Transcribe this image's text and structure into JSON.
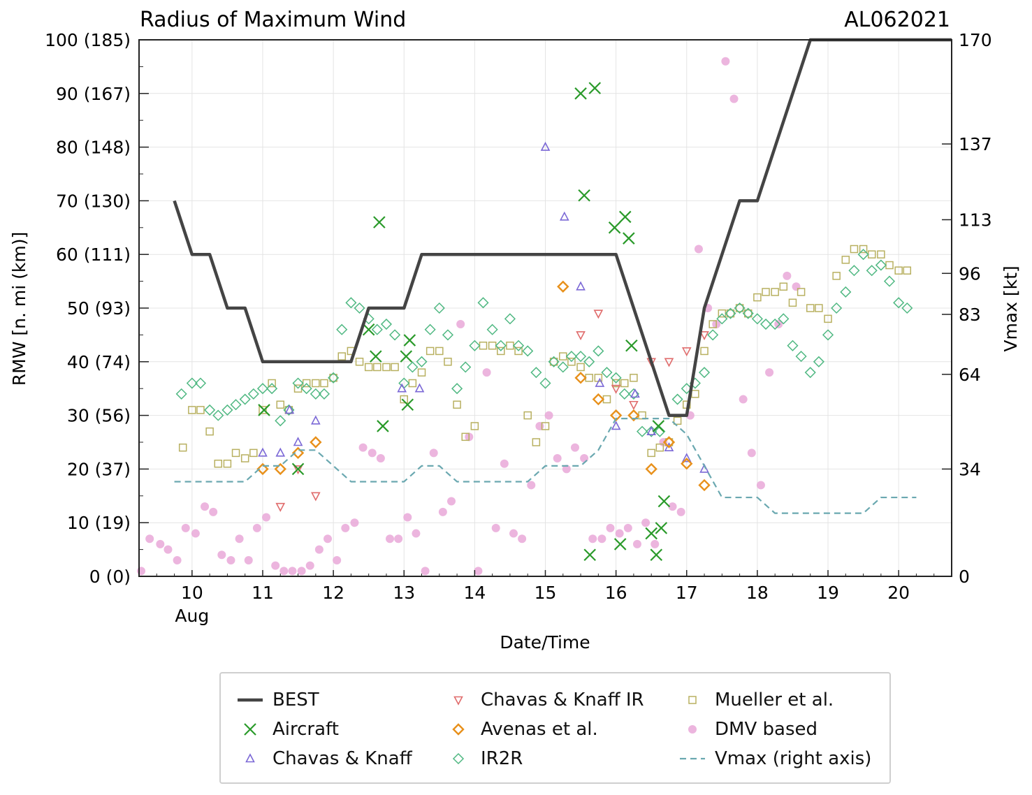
{
  "chart_data": {
    "type": "scatter",
    "title": "Radius of Maximum Wind",
    "storm_id": "AL062021",
    "xlabel": "Date/Time",
    "ylabel": "RMW [n. mi (km)]",
    "y2label": "Vmax [kt]",
    "xlim": [
      9.25,
      20.75
    ],
    "ylim": [
      0,
      100
    ],
    "xticks": [
      "10",
      "11",
      "12",
      "13",
      "14",
      "15",
      "16",
      "17",
      "18",
      "19",
      "20"
    ],
    "xtick_values": [
      10,
      11,
      12,
      13,
      14,
      15,
      16,
      17,
      18,
      19,
      20
    ],
    "x_month_label": "Aug",
    "yticks": [
      "0 (0)",
      "10 (19)",
      "20 (37)",
      "30 (56)",
      "40 (74)",
      "50 (93)",
      "60 (111)",
      "70 (130)",
      "80 (148)",
      "90 (167)",
      "100 (185)"
    ],
    "ytick_values": [
      0,
      10,
      20,
      30,
      40,
      50,
      60,
      70,
      80,
      90,
      100
    ],
    "y2ticks": [
      {
        "label": "0",
        "kt": 0
      },
      {
        "label": "34",
        "kt": 34
      },
      {
        "label": "64",
        "kt": 64
      },
      {
        "label": "83",
        "kt": 83
      },
      {
        "label": "96",
        "kt": 96
      },
      {
        "label": "113",
        "kt": 113
      },
      {
        "label": "137",
        "kt": 137
      },
      {
        "label": "170",
        "kt": 170
      }
    ],
    "y2lim": [
      0,
      170
    ],
    "series": [
      {
        "name": "BEST",
        "kind": "line",
        "color": "#444444",
        "dashed": false,
        "x": [
          9.75,
          10.0,
          10.25,
          10.5,
          10.75,
          11.0,
          11.25,
          11.5,
          11.75,
          12.0,
          12.25,
          12.5,
          12.75,
          13.0,
          13.25,
          13.5,
          13.75,
          14.0,
          14.25,
          14.5,
          14.75,
          15.0,
          15.25,
          15.5,
          15.75,
          16.0,
          16.25,
          16.5,
          16.75,
          17.0,
          17.25,
          17.5,
          17.75,
          18.0,
          18.25,
          18.5,
          18.75,
          19.0,
          19.25,
          19.5,
          19.75,
          20.0,
          20.25,
          20.75
        ],
        "y": [
          70,
          60,
          60,
          50,
          50,
          40,
          40,
          40,
          40,
          40,
          40,
          50,
          50,
          50,
          60,
          60,
          60,
          60,
          60,
          60,
          60,
          60,
          60,
          60,
          60,
          60,
          50,
          40,
          30,
          30,
          50,
          60,
          70,
          70,
          80,
          90,
          100,
          100,
          100,
          100,
          100,
          100,
          100,
          100
        ]
      },
      {
        "name": "Aircraft",
        "kind": "x",
        "color": "#2a9a2a",
        "x": [
          11.02,
          11.5,
          12.5,
          12.6,
          12.65,
          12.7,
          13.03,
          13.05,
          13.08,
          15.5,
          15.55,
          15.63,
          15.7,
          15.98,
          16.06,
          16.13,
          16.18,
          16.22,
          16.5,
          16.57,
          16.6,
          16.64,
          16.68
        ],
        "y": [
          31,
          20,
          46,
          41,
          66,
          28,
          41,
          32,
          44,
          90,
          71,
          4,
          91,
          65,
          6,
          67,
          63,
          43,
          8,
          4,
          28,
          9,
          14
        ]
      },
      {
        "name": "Chavas & Knaff",
        "kind": "triangle-up",
        "color": "#7b68d6",
        "x": [
          11.0,
          11.25,
          11.5,
          11.38,
          11.75,
          12.97,
          13.22,
          15.0,
          15.27,
          15.5,
          15.77,
          16.0,
          16.27,
          16.5,
          16.75,
          17.0,
          17.25
        ],
        "y": [
          23,
          23,
          25,
          31,
          29,
          35,
          35,
          80,
          67,
          54,
          36,
          28,
          34,
          27,
          24,
          22,
          20
        ]
      },
      {
        "name": "Chavas & Knaff IR",
        "kind": "triangle-down",
        "color": "#e06c6c",
        "x": [
          11.25,
          11.5,
          11.75,
          15.5,
          15.75,
          16.0,
          16.25,
          16.5,
          16.75,
          17.0,
          17.25
        ],
        "y": [
          13,
          20,
          15,
          45,
          49,
          35,
          32,
          40,
          40,
          42,
          45
        ]
      },
      {
        "name": "Avenas et al.",
        "kind": "diamond",
        "color": "#e8901a",
        "x": [
          11.0,
          11.25,
          11.5,
          11.75,
          15.25,
          15.5,
          15.75,
          16.0,
          16.25,
          16.5,
          16.75,
          17.0,
          17.25
        ],
        "y": [
          20,
          20,
          23,
          25,
          54,
          37,
          33,
          30,
          30,
          20,
          25,
          21,
          17
        ]
      },
      {
        "name": "IR2R",
        "kind": "diamond-open",
        "color": "#4fb882",
        "x": [
          9.85,
          10.0,
          10.12,
          10.25,
          10.37,
          10.5,
          10.62,
          10.75,
          10.87,
          11.0,
          11.13,
          11.25,
          11.37,
          11.5,
          11.62,
          11.75,
          11.87,
          12.0,
          12.12,
          12.25,
          12.37,
          12.5,
          12.62,
          12.75,
          12.87,
          13.0,
          13.12,
          13.25,
          13.37,
          13.5,
          13.62,
          13.75,
          13.87,
          14.0,
          14.12,
          14.25,
          14.37,
          14.5,
          14.62,
          14.75,
          14.87,
          15.0,
          15.12,
          15.25,
          15.37,
          15.5,
          15.62,
          15.75,
          15.87,
          16.0,
          16.12,
          16.25,
          16.37,
          16.5,
          16.62,
          16.75,
          16.87,
          17.0,
          17.12,
          17.25,
          17.37,
          17.5,
          17.62,
          17.75,
          17.87,
          18.0,
          18.12,
          18.25,
          18.37,
          18.5,
          18.62,
          18.75,
          18.87,
          19.0,
          19.12,
          19.25,
          19.37,
          19.5,
          19.62,
          19.75,
          19.87,
          20.0,
          20.12
        ],
        "y": [
          34,
          36,
          36,
          31,
          30,
          31,
          32,
          33,
          34,
          35,
          35,
          29,
          31,
          36,
          35,
          34,
          34,
          37,
          46,
          51,
          50,
          48,
          46,
          47,
          45,
          36,
          39,
          40,
          46,
          50,
          45,
          35,
          39,
          43,
          51,
          46,
          43,
          48,
          43,
          42,
          38,
          36,
          40,
          39,
          41,
          41,
          40,
          42,
          38,
          37,
          34,
          34,
          27,
          27,
          27,
          25,
          33,
          35,
          36,
          38,
          45,
          48,
          49,
          50,
          49,
          48,
          47,
          47,
          48,
          43,
          41,
          38,
          40,
          45,
          50,
          53,
          57,
          60,
          57,
          58,
          55,
          51,
          50
        ]
      },
      {
        "name": "Mueller et al.",
        "kind": "square",
        "color": "#b8b060",
        "x": [
          9.87,
          10.0,
          10.12,
          10.25,
          10.37,
          10.5,
          10.62,
          10.75,
          10.87,
          11.0,
          11.13,
          11.25,
          11.37,
          11.5,
          11.62,
          11.75,
          11.87,
          12.0,
          12.12,
          12.25,
          12.37,
          12.5,
          12.62,
          12.75,
          12.87,
          13.0,
          13.12,
          13.25,
          13.37,
          13.5,
          13.62,
          13.75,
          13.87,
          14.0,
          14.12,
          14.25,
          14.37,
          14.5,
          14.62,
          14.75,
          14.87,
          15.0,
          15.12,
          15.25,
          15.37,
          15.5,
          15.62,
          15.75,
          15.87,
          16.0,
          16.12,
          16.25,
          16.37,
          16.5,
          16.62,
          16.75,
          16.87,
          17.0,
          17.12,
          17.25,
          17.37,
          17.5,
          17.62,
          17.75,
          17.87,
          18.0,
          18.12,
          18.25,
          18.37,
          18.5,
          18.62,
          18.75,
          18.87,
          19.0,
          19.12,
          19.25,
          19.37,
          19.5,
          19.62,
          19.75,
          19.87,
          20.0,
          20.12
        ],
        "y": [
          24,
          31,
          31,
          27,
          21,
          21,
          23,
          22,
          23,
          31,
          36,
          32,
          31,
          35,
          36,
          36,
          36,
          37,
          41,
          42,
          40,
          39,
          39,
          39,
          39,
          33,
          36,
          38,
          42,
          42,
          40,
          32,
          26,
          28,
          43,
          43,
          42,
          43,
          42,
          30,
          25,
          28,
          40,
          41,
          40,
          39,
          37,
          37,
          33,
          36,
          36,
          37,
          30,
          23,
          24,
          25,
          29,
          32,
          34,
          42,
          47,
          49,
          49,
          50,
          49,
          52,
          53,
          53,
          54,
          51,
          53,
          50,
          50,
          48,
          56,
          59,
          61,
          61,
          60,
          60,
          58,
          57,
          57
        ]
      },
      {
        "name": "DMV based",
        "kind": "dot",
        "color": "#e9a8d8",
        "x": [
          9.28,
          9.4,
          9.55,
          9.66,
          9.79,
          9.91,
          10.05,
          10.18,
          10.3,
          10.42,
          10.55,
          10.67,
          10.8,
          10.92,
          11.05,
          11.18,
          11.3,
          11.42,
          11.55,
          11.67,
          11.8,
          11.92,
          12.05,
          12.17,
          12.3,
          12.42,
          12.55,
          12.67,
          12.8,
          12.92,
          13.05,
          13.17,
          13.3,
          13.42,
          13.55,
          13.67,
          13.8,
          13.92,
          14.05,
          14.17,
          14.3,
          14.42,
          14.55,
          14.67,
          14.8,
          14.92,
          15.05,
          15.17,
          15.3,
          15.42,
          15.55,
          15.67,
          15.8,
          15.92,
          16.05,
          16.17,
          16.3,
          16.42,
          16.55,
          16.67,
          16.8,
          16.92,
          17.05,
          17.17,
          17.3,
          17.42,
          17.55,
          17.67,
          17.8,
          17.92,
          18.05,
          18.17,
          18.3,
          18.42,
          18.55
        ],
        "y": [
          1,
          7,
          6,
          5,
          3,
          9,
          8,
          13,
          12,
          4,
          3,
          7,
          3,
          9,
          11,
          2,
          1,
          1,
          1,
          2,
          5,
          7,
          3,
          9,
          10,
          24,
          23,
          22,
          7,
          7,
          11,
          8,
          1,
          23,
          12,
          14,
          47,
          26,
          1,
          38,
          9,
          21,
          8,
          7,
          17,
          28,
          30,
          22,
          20,
          24,
          22,
          7,
          7,
          9,
          8,
          9,
          6,
          10,
          6,
          25,
          13,
          12,
          30,
          61,
          50,
          47,
          96,
          89,
          33,
          23,
          17,
          38,
          47,
          56,
          54
        ]
      },
      {
        "name": "Vmax (right axis)",
        "kind": "dashed",
        "color": "#6aa8b0",
        "dashed": true,
        "axis": "right",
        "x": [
          9.75,
          10.0,
          10.25,
          10.5,
          10.75,
          11.0,
          11.25,
          11.5,
          11.75,
          12.0,
          12.25,
          12.5,
          12.75,
          13.0,
          13.25,
          13.5,
          13.75,
          14.0,
          14.25,
          14.5,
          14.75,
          15.0,
          15.25,
          15.5,
          15.75,
          16.0,
          16.25,
          16.5,
          16.75,
          17.0,
          17.25,
          17.5,
          17.75,
          18.0,
          18.25,
          18.5,
          18.75,
          19.0,
          19.25,
          19.5,
          19.75,
          20.0,
          20.25
        ],
        "y": [
          30,
          30,
          30,
          30,
          30,
          35,
          35,
          40,
          40,
          35,
          30,
          30,
          30,
          30,
          35,
          35,
          30,
          30,
          30,
          30,
          30,
          35,
          35,
          35,
          40,
          50,
          50,
          50,
          50,
          45,
          35,
          25,
          25,
          25,
          20,
          20,
          20,
          20,
          20,
          20,
          25,
          25,
          25
        ]
      }
    ],
    "legend": [
      {
        "label": "BEST",
        "kind": "line",
        "color": "#444444"
      },
      {
        "label": "Aircraft",
        "kind": "x",
        "color": "#2a9a2a"
      },
      {
        "label": "Chavas & Knaff",
        "kind": "triangle-up",
        "color": "#7b68d6"
      },
      {
        "label": "Chavas & Knaff IR",
        "kind": "triangle-down",
        "color": "#e06c6c"
      },
      {
        "label": "Avenas et al.",
        "kind": "diamond",
        "color": "#e8901a"
      },
      {
        "label": "IR2R",
        "kind": "diamond-open",
        "color": "#4fb882"
      },
      {
        "label": "Mueller et al.",
        "kind": "square",
        "color": "#b8b060"
      },
      {
        "label": "DMV based",
        "kind": "dot",
        "color": "#e9a8d8"
      },
      {
        "label": "Vmax (right axis)",
        "kind": "dashed",
        "color": "#6aa8b0"
      }
    ],
    "legend_position": "bottom-center"
  }
}
